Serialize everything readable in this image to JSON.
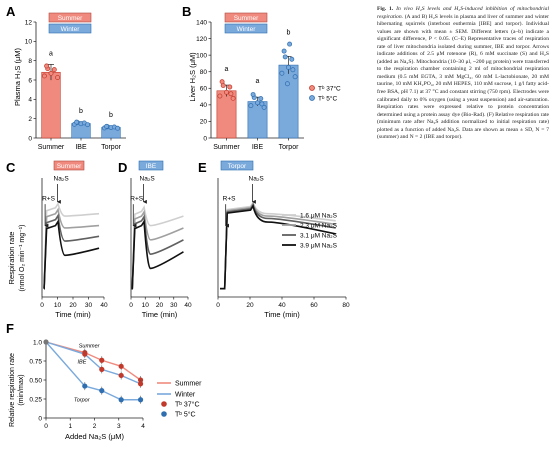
{
  "panels": {
    "A": {
      "letter": "A",
      "ylabel": "Plasma H₂S (μM)",
      "legend": [
        "Summer",
        "Winter"
      ],
      "categories": [
        "Summer",
        "IBE",
        "Torpor"
      ],
      "yticks": [
        "0",
        "2",
        "4",
        "6",
        "8",
        "10",
        "12"
      ]
    },
    "B": {
      "letter": "B",
      "ylabel": "Liver H₂S (μM)",
      "legend": [
        "Summer",
        "Winter"
      ],
      "temp_legend": [
        "Tᵇ 37°C",
        "Tᵇ 5°C"
      ],
      "categories": [
        "Summer",
        "IBE",
        "Torpor"
      ],
      "yticks": [
        "0",
        "20",
        "40",
        "60",
        "80",
        "100",
        "120",
        "140"
      ]
    },
    "C": {
      "letter": "C",
      "tag": "Summer",
      "ylabel_1": "Respiration rate",
      "ylabel_2": "(nmol O₂ min⁻¹ mg⁻¹)",
      "xlabel": "Time (min)",
      "xticks": [
        "0",
        "10",
        "20",
        "30",
        "40"
      ],
      "arrow_1": "R+S",
      "arrow_2": "Na₂S"
    },
    "D": {
      "letter": "D",
      "tag": "IBE",
      "xlabel": "Time (min)",
      "xticks": [
        "0",
        "10",
        "20",
        "30",
        "40"
      ],
      "arrow_1": "R+S",
      "arrow_2": "Na₂S"
    },
    "E": {
      "letter": "E",
      "tag": "Torpor",
      "xlabel": "Time (min)",
      "xticks": [
        "0",
        "20",
        "40",
        "60",
        "80"
      ],
      "arrow_1": "R+S",
      "arrow_2": "Na₂S",
      "legend": [
        "1.6 μM Na₂S",
        "2.3 μM Na₂S",
        "3.1 μM Na₂S",
        "3.9 μM Na₂S"
      ]
    },
    "F": {
      "letter": "F",
      "ylabel_1": "Relative respiration rate",
      "ylabel_2": "(min/max)",
      "xlabel": "Added Na₂S (μM)",
      "yticks": [
        "0",
        "0.25",
        "0.50",
        "0.75",
        "1.0"
      ],
      "xticks": [
        "0",
        "1",
        "2",
        "3",
        "4"
      ],
      "curve_labels": [
        "Summer",
        "IBE",
        "Torpor"
      ],
      "legend": [
        "Summer",
        "Winter",
        "Tᵇ 37°C",
        "Tᵇ 5°C"
      ]
    }
  },
  "colors": {
    "summer": "#f08a7e",
    "winter": "#7aa9dc",
    "summer_dark": "#c0392b",
    "winter_dark": "#2f6fb0"
  },
  "chart_data": [
    {
      "type": "bar",
      "panel": "A",
      "categories": [
        "Summer",
        "IBE",
        "Torpor"
      ],
      "values": [
        6.8,
        1.5,
        1.1
      ],
      "ylim": [
        0,
        12
      ],
      "ylabel": "Plasma H₂S (μM)",
      "labels": [
        "a",
        "b",
        "b"
      ],
      "series": [
        {
          "name": "Summer",
          "values": [
            6.8,
            null,
            null
          ]
        },
        {
          "name": "Winter",
          "values": [
            null,
            1.5,
            1.1
          ]
        }
      ]
    },
    {
      "type": "bar",
      "panel": "B",
      "categories": [
        "Summer",
        "IBE",
        "Torpor"
      ],
      "values": [
        57,
        44,
        88
      ],
      "ylim": [
        0,
        140
      ],
      "ylabel": "Liver H₂S (μM)",
      "labels": [
        "a",
        "a",
        "b"
      ],
      "series": [
        {
          "name": "Summer",
          "values": [
            57,
            null,
            null
          ]
        },
        {
          "name": "Winter",
          "values": [
            null,
            44,
            88
          ]
        }
      ]
    },
    {
      "type": "line",
      "panel": "F",
      "x": [
        0,
        1.6,
        2.3,
        3.1,
        3.9
      ],
      "xlabel": "Added Na₂S (μM)",
      "ylabel": "Relative respiration rate (min/max)",
      "ylim": [
        0,
        1.0
      ],
      "series": [
        {
          "name": "Summer",
          "values": [
            1.0,
            0.86,
            0.76,
            0.68,
            0.5
          ]
        },
        {
          "name": "IBE",
          "values": [
            1.0,
            0.84,
            0.64,
            0.56,
            0.45
          ]
        },
        {
          "name": "Torpor",
          "values": [
            1.0,
            0.42,
            0.36,
            0.24,
            0.24
          ]
        }
      ]
    }
  ],
  "caption": {
    "lead": "Fig. 1.",
    "title": "In vivo H₂S levels and H₂S-induced inhibition of mitochondrial respiration.",
    "body": "(A and B) H₂S levels in plasma and liver of summer and winter hibernating squirrels (interbout euthermia [IBE] and torpor). Individual values are shown with mean ± SEM. Different letters (a–b) indicate a significant difference, P < 0.05. (C–E) Representative traces of respiration rate of liver mitochondria isolated during summer, IBE and torpor. Arrows indicate additions of 2.5 μM rotenone (R), 6 mM succinate (S) and H₂S (added as Na₂S). Mitochondria (10–30 μl, ~200 μg protein) were transferred to the respiration chamber containing 2 ml of mitochondrial respiration medium (0.5 mM EGTA, 3 mM MgCl₂, 60 mM L-lactobionate, 20 mM taurine, 10 mM KH₂PO₄, 20 mM HEPES, 110 mM sucrose, 1 g/l fatty acid-free BSA, pH 7.1) at 37 °C and constant stirring (750 rpm). Electrodes were calibrated daily to 0% oxygen (using a yeast suspension) and air-saturation. Respiration rates were expressed relative to protein concentration determined using a protein assay dye (Bio-Rad). (F) Relative respiration rate (minimum rate after Na₂S addition normalized to initial respiration rate) plotted as a function of added Na₂S. Data are shown as mean ± SD, N = 7 (summer) and N = 2 (IBE and torpor)."
  }
}
